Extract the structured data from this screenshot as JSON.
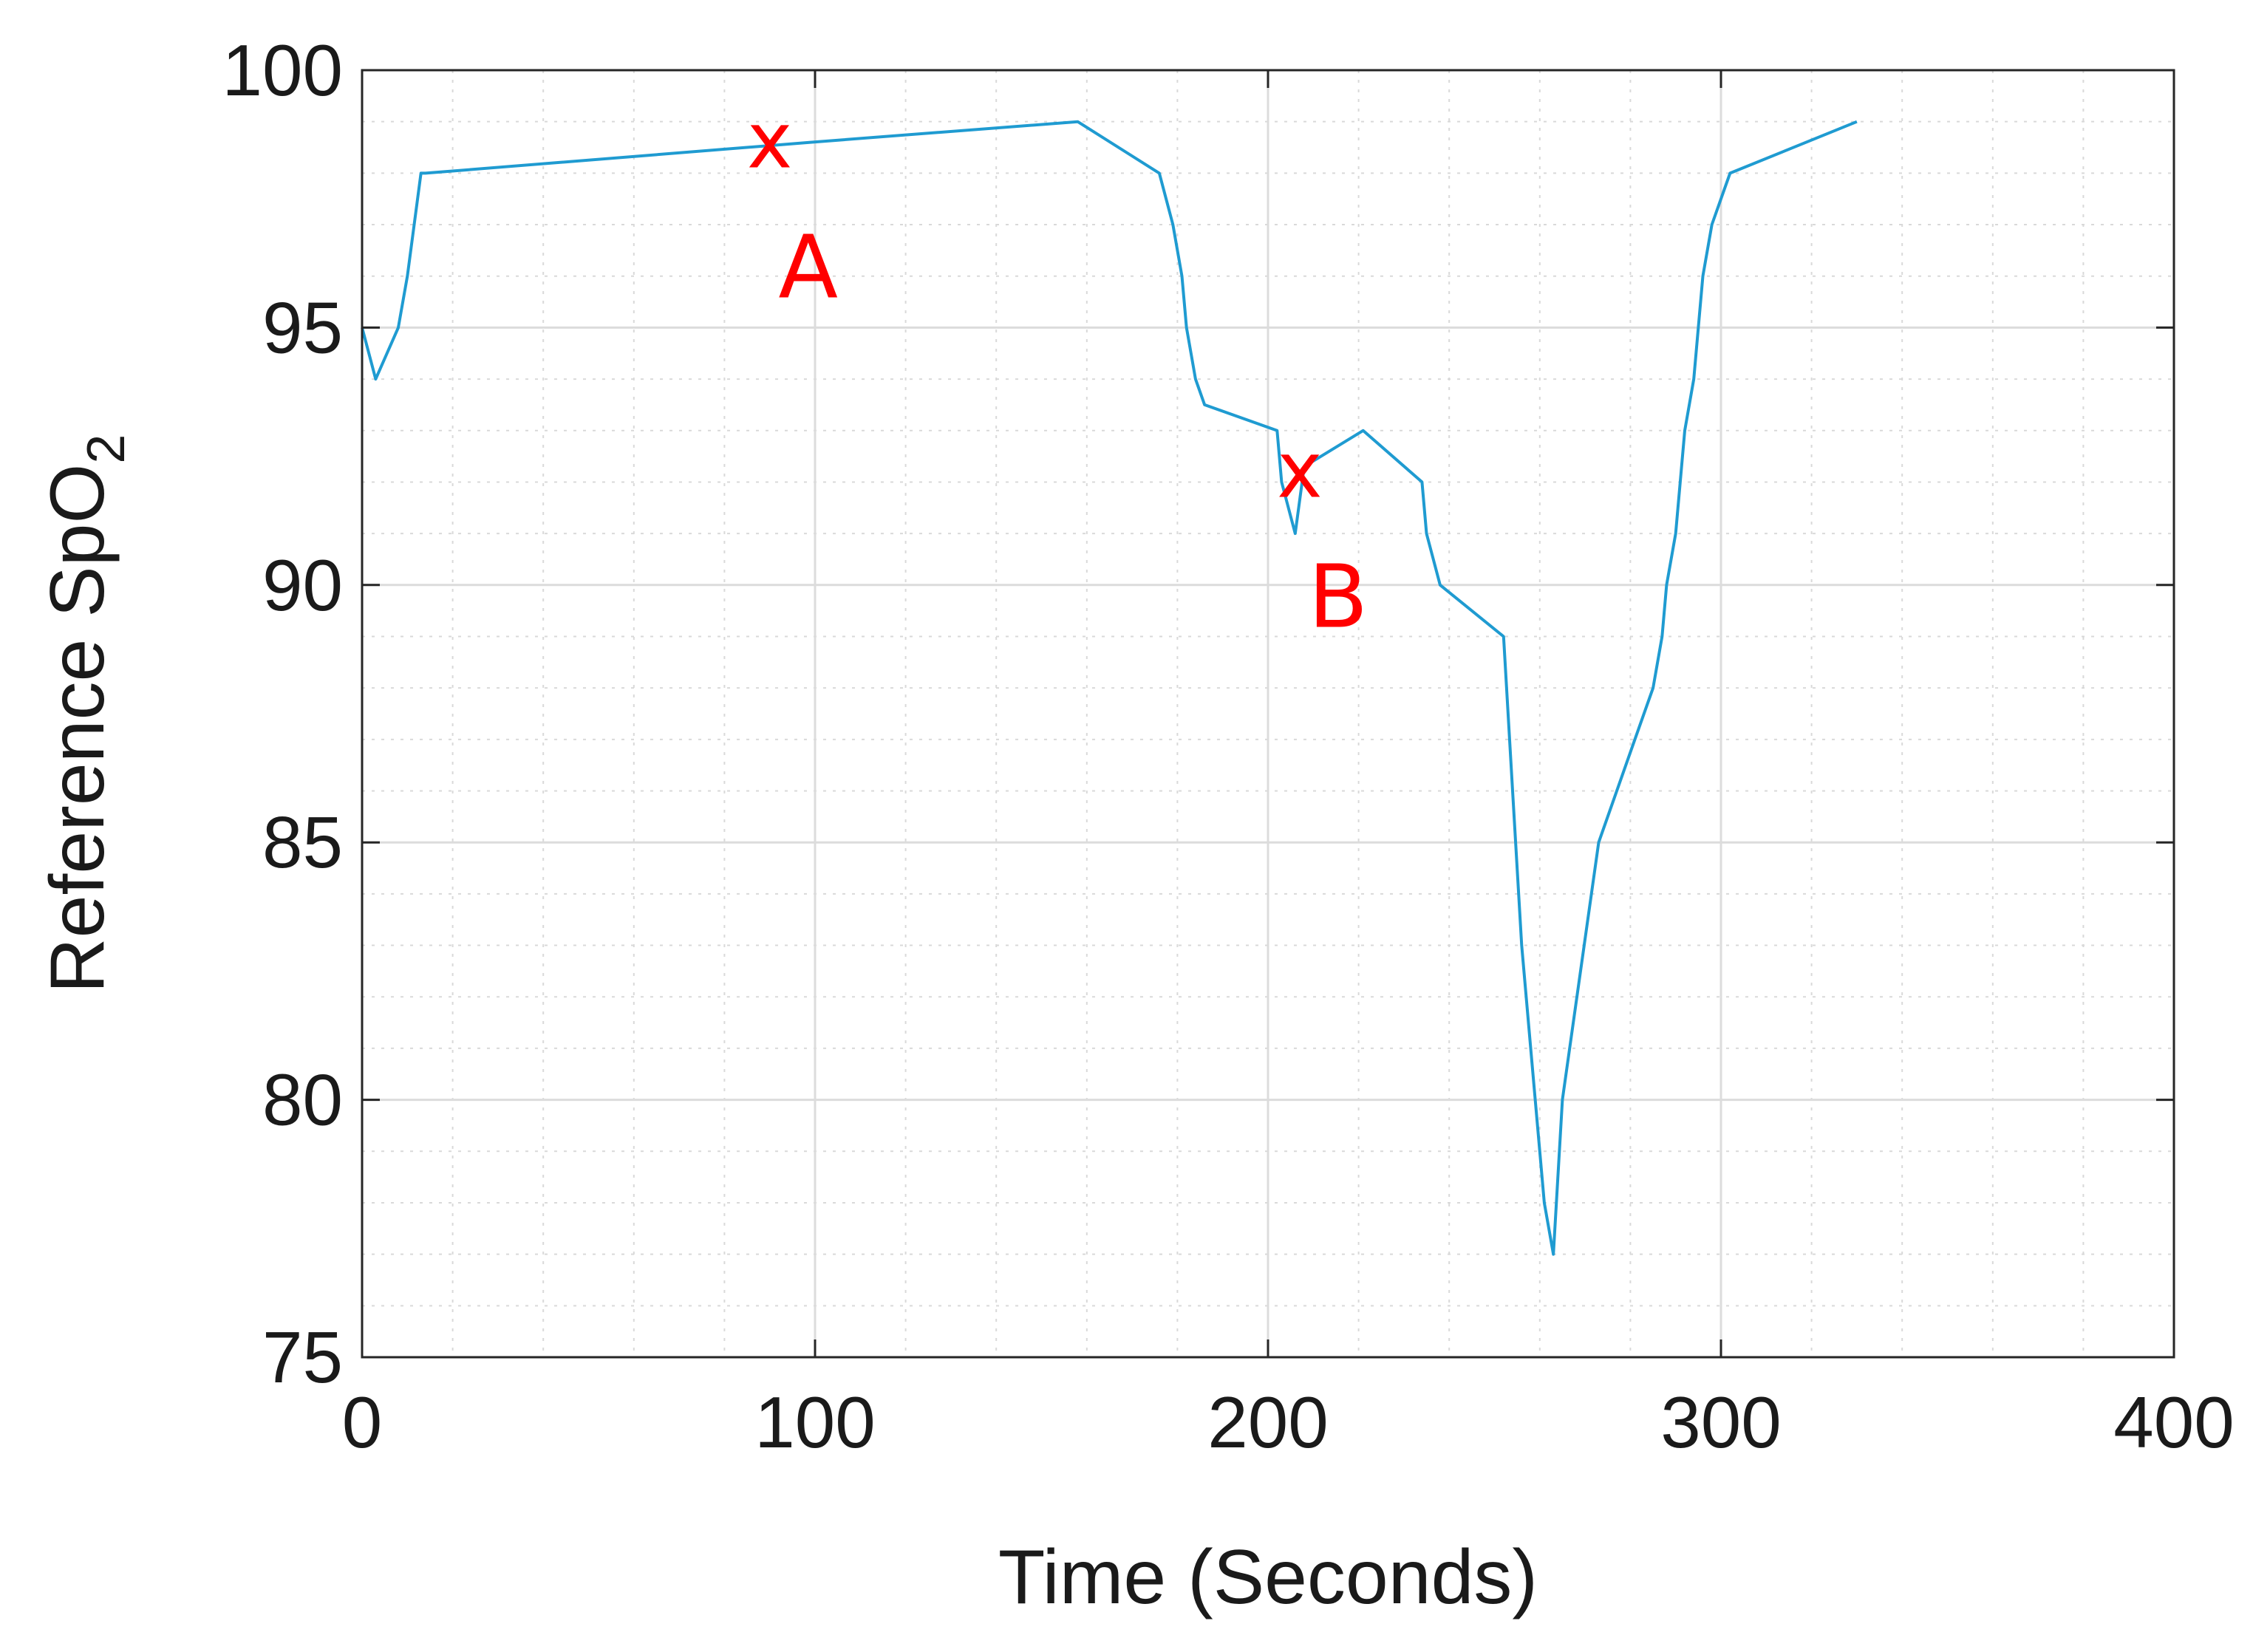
{
  "chart_data": {
    "type": "line",
    "title": "",
    "xlabel": "Time (Seconds)",
    "ylabel_main": "Reference SpO",
    "ylabel_subscript": "2",
    "xlim": [
      0,
      400
    ],
    "ylim": [
      75,
      100
    ],
    "xticks": [
      0,
      100,
      200,
      300,
      400
    ],
    "yticks": [
      75,
      80,
      85,
      90,
      95,
      100
    ],
    "grid": true,
    "minor_grid": true,
    "line_color": "#1f9bd1",
    "annotation_color": "#ff0000",
    "series": [
      {
        "x": [
          0,
          3,
          8,
          10,
          13,
          14,
          99,
          158,
          176,
          179,
          181,
          182,
          183,
          184,
          186,
          202,
          203,
          206,
          208,
          221,
          234,
          235,
          238,
          252,
          254,
          256,
          258,
          261,
          263,
          265,
          273,
          281,
          285,
          287,
          288,
          290,
          292,
          294,
          296,
          298,
          302,
          330
        ],
        "y": [
          95,
          94,
          95,
          96,
          98,
          98,
          98.6,
          99,
          98,
          97,
          96,
          95,
          94.5,
          94,
          93.5,
          93,
          92,
          91,
          92.3,
          93,
          92,
          91,
          90,
          89,
          86,
          83,
          81,
          78,
          77,
          80,
          85,
          87,
          88,
          89,
          90,
          91,
          93,
          94,
          96,
          97,
          98,
          99
        ]
      }
    ],
    "annotations": [
      {
        "marker": "x",
        "label": "A",
        "x": 90,
        "y": 98.6
      },
      {
        "marker": "x",
        "label": "B",
        "x": 207,
        "y": 92.2
      }
    ]
  }
}
